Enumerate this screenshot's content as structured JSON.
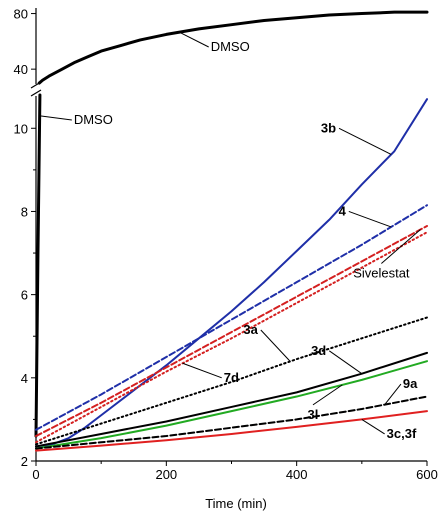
{
  "chart_data": {
    "type": "line",
    "xlabel": "Time (min)",
    "ylabel": "",
    "ylim": [
      2,
      10.8
    ],
    "xlim": [
      0,
      600
    ],
    "x_ticks": [
      0,
      200,
      400,
      600
    ],
    "y_ticks": [
      2,
      4,
      6,
      8,
      10
    ],
    "y_break_ticks": [
      40,
      80
    ],
    "series": [
      {
        "name": "DMSO",
        "color": "#000000",
        "style": "solid",
        "x": [
          5,
          10,
          20,
          40,
          60,
          80,
          100,
          130,
          160,
          200,
          250,
          300,
          350,
          400,
          450,
          500,
          550,
          600
        ],
        "y": [
          30,
          32,
          35,
          40,
          45,
          49,
          53,
          57,
          61,
          65,
          69,
          72,
          75,
          77,
          79,
          80,
          81,
          81
        ]
      },
      {
        "name": "3b",
        "color": "#1f2fa8",
        "style": "solid",
        "x": [
          0,
          25,
          50,
          75,
          100,
          150,
          200,
          250,
          300,
          350,
          400,
          450,
          500,
          550,
          600
        ],
        "y": [
          2.35,
          2.4,
          2.55,
          2.8,
          3.1,
          3.7,
          4.3,
          4.95,
          5.6,
          6.3,
          7.05,
          7.8,
          8.65,
          9.45,
          10.7
        ]
      },
      {
        "name": "4",
        "color": "#1f2fa8",
        "style": "dashed",
        "x": [
          0,
          100,
          200,
          300,
          400,
          500,
          600
        ],
        "y": [
          2.75,
          3.6,
          4.5,
          5.4,
          6.3,
          7.2,
          8.15
        ]
      },
      {
        "name": "Sivelestat",
        "color": "#d42020",
        "style": "dashed",
        "x": [
          0,
          100,
          200,
          300,
          400,
          500,
          600
        ],
        "y": [
          2.6,
          3.4,
          4.25,
          5.1,
          5.95,
          6.8,
          7.65
        ]
      },
      {
        "name": "7d",
        "color": "#d42020",
        "style": "dotted",
        "x": [
          0,
          100,
          200,
          300,
          400,
          500,
          600
        ],
        "y": [
          2.45,
          3.3,
          4.15,
          4.95,
          5.8,
          6.65,
          7.5
        ]
      },
      {
        "name": "3a",
        "color": "#000000",
        "style": "dotted",
        "x": [
          0,
          100,
          200,
          300,
          400,
          500,
          600
        ],
        "y": [
          2.4,
          2.9,
          3.4,
          3.9,
          4.45,
          4.95,
          5.45
        ]
      },
      {
        "name": "3d",
        "color": "#000000",
        "style": "solid",
        "x": [
          0,
          100,
          200,
          300,
          400,
          500,
          600
        ],
        "y": [
          2.35,
          2.65,
          2.95,
          3.3,
          3.65,
          4.1,
          4.6
        ]
      },
      {
        "name": "3l",
        "color": "#22aa22",
        "style": "solid",
        "x": [
          0,
          100,
          200,
          300,
          400,
          500,
          600
        ],
        "y": [
          2.3,
          2.55,
          2.85,
          3.2,
          3.55,
          3.95,
          4.4
        ]
      },
      {
        "name": "9a",
        "color": "#000000",
        "style": "dashed",
        "x": [
          0,
          100,
          200,
          300,
          400,
          500,
          600
        ],
        "y": [
          2.3,
          2.45,
          2.6,
          2.8,
          3.0,
          3.25,
          3.55
        ]
      },
      {
        "name": "3c,3f",
        "color": "#e02020",
        "style": "solid",
        "x": [
          0,
          100,
          200,
          300,
          400,
          500,
          600
        ],
        "y": [
          2.25,
          2.37,
          2.5,
          2.65,
          2.82,
          3.0,
          3.2
        ]
      }
    ],
    "annotations": [
      {
        "text": "DMSO",
        "anchor_series": "DMSO",
        "anchor_x": 220,
        "label_x": 265,
        "label_y_top": 47
      },
      {
        "text": "DMSO",
        "anchor_series": "DMSO",
        "anchor_x": 5,
        "label_x": 55,
        "label_y": 10.2
      },
      {
        "text": "3b",
        "anchor_series": "3b",
        "anchor_x": 545,
        "label_x": 465,
        "label_y": 10.0
      },
      {
        "text": "4",
        "anchor_series": "4",
        "anchor_x": 545,
        "label_x": 480,
        "label_y": 8.0
      },
      {
        "text": "Sivelestat",
        "anchor_series": "Sivelestat",
        "anchor_x": 590,
        "label_x": 530,
        "label_y": 6.75
      },
      {
        "text": "7d",
        "anchor_series": "7d",
        "anchor_x": 225,
        "label_x": 285,
        "label_y": 4.0
      },
      {
        "text": "3a",
        "anchor_series": "3a",
        "anchor_x": 390,
        "label_x": 345,
        "label_y": 5.15
      },
      {
        "text": "3d",
        "anchor_series": "3d",
        "anchor_x": 500,
        "label_x": 450,
        "label_y": 4.65
      },
      {
        "text": "3l",
        "anchor_series": "3l",
        "anchor_x": 470,
        "label_x": 425,
        "label_y": 3.35
      },
      {
        "text": "9a",
        "anchor_series": "9a",
        "anchor_x": 535,
        "label_x": 560,
        "label_y": 3.85
      },
      {
        "text": "3c,3f",
        "anchor_series": "3c,3f",
        "anchor_x": 500,
        "label_x": 535,
        "label_y": 2.65
      }
    ]
  }
}
